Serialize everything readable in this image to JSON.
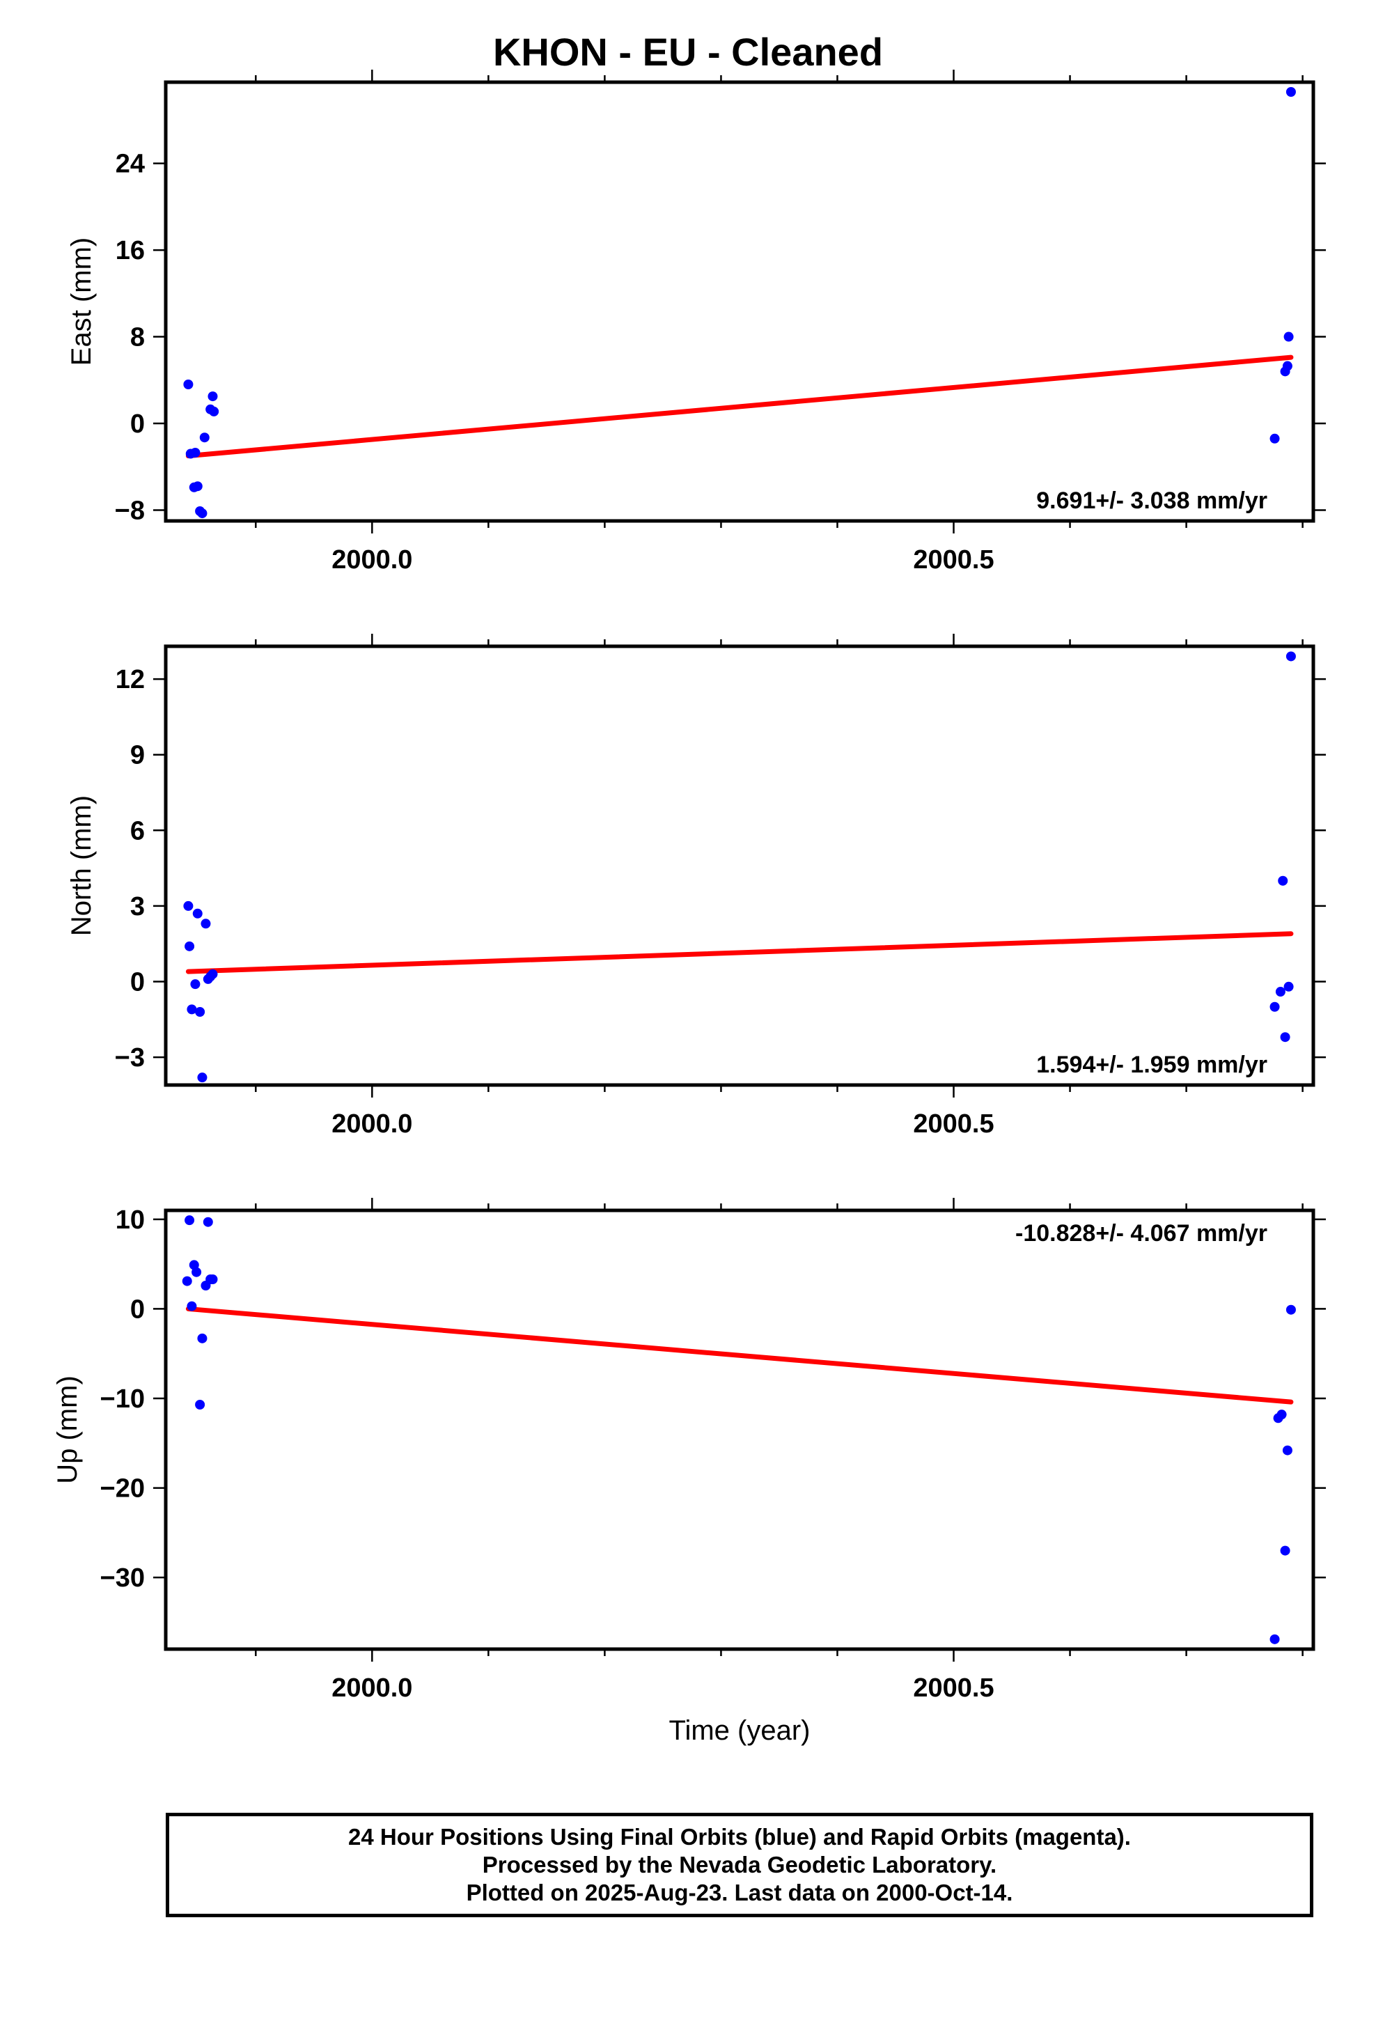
{
  "title": "KHON  - EU - Cleaned",
  "xlabel": "Time (year)",
  "footer": {
    "line1": "24 Hour Positions Using Final Orbits (blue) and Rapid Orbits (magenta).",
    "line2": "Processed by the Nevada Geodetic Laboratory.",
    "line3": "Plotted on 2025-Aug-23. Last data on 2000-Oct-14."
  },
  "colors": {
    "points": "#0000ff",
    "fit": "#ff0000",
    "frame": "#000000"
  },
  "chart_data": [
    {
      "type": "scatter",
      "ylabel": "East (mm)",
      "rate_label": "9.691+/- 3.038 mm/yr",
      "xlim": [
        1999.8226,
        2000.8092
      ],
      "ylim": [
        -9.0,
        31.5
      ],
      "xticks": [
        2000.0,
        2000.5
      ],
      "xtick_labels": [
        "2000.0",
        "2000.5"
      ],
      "yticks": [
        -8,
        0,
        8,
        16,
        24
      ],
      "ytick_labels": [
        "−8",
        "0",
        "8",
        "16",
        "24"
      ],
      "x": [
        1999.842,
        1999.844,
        1999.847,
        1999.848,
        1999.85,
        1999.852,
        1999.854,
        1999.856,
        1999.861,
        1999.863,
        1999.864,
        2000.776,
        2000.785,
        2000.787,
        2000.788,
        2000.79
      ],
      "y": [
        3.6,
        -2.8,
        -5.9,
        -2.7,
        -5.8,
        -8.1,
        -8.3,
        -1.3,
        1.3,
        2.5,
        1.1,
        -1.4,
        4.8,
        5.3,
        8.0,
        30.6
      ],
      "fit": {
        "x": [
          1999.842,
          2000.79
        ],
        "y": [
          -3.0,
          6.1
        ]
      }
    },
    {
      "type": "scatter",
      "ylabel": "North (mm)",
      "rate_label": "1.594+/- 1.959 mm/yr",
      "xlim": [
        1999.8226,
        2000.8092
      ],
      "ylim": [
        -4.1,
        13.3
      ],
      "xticks": [
        2000.0,
        2000.5
      ],
      "xtick_labels": [
        "2000.0",
        "2000.5"
      ],
      "yticks": [
        -3,
        0,
        3,
        6,
        9,
        12
      ],
      "ytick_labels": [
        "−3",
        "0",
        "3",
        "6",
        "9",
        "12"
      ],
      "x": [
        1999.842,
        1999.843,
        1999.845,
        1999.848,
        1999.85,
        1999.852,
        1999.854,
        1999.857,
        1999.859,
        1999.861,
        1999.863,
        2000.776,
        2000.781,
        2000.783,
        2000.785,
        2000.788,
        2000.79
      ],
      "y": [
        3.0,
        1.4,
        -1.1,
        -0.1,
        2.7,
        -1.2,
        -3.8,
        2.3,
        0.1,
        0.2,
        0.3,
        -1.0,
        -0.4,
        4.0,
        -2.2,
        -0.2,
        12.9
      ],
      "fit": {
        "x": [
          1999.842,
          2000.79
        ],
        "y": [
          0.4,
          1.9
        ]
      }
    },
    {
      "type": "scatter",
      "ylabel": "Up (mm)",
      "rate_label": "-10.828+/- 4.067 mm/yr",
      "xlim": [
        1999.8226,
        2000.8092
      ],
      "ylim": [
        -38.0,
        11.0
      ],
      "xticks": [
        2000.0,
        2000.5
      ],
      "xtick_labels": [
        "2000.0",
        "2000.5"
      ],
      "yticks": [
        -30,
        -20,
        -10,
        0,
        10
      ],
      "ytick_labels": [
        "−30",
        "−20",
        "−10",
        "0",
        "10"
      ],
      "x": [
        1999.841,
        1999.843,
        1999.845,
        1999.847,
        1999.849,
        1999.852,
        1999.854,
        1999.857,
        1999.859,
        1999.861,
        1999.863,
        2000.776,
        2000.779,
        2000.782,
        2000.785,
        2000.787,
        2000.79
      ],
      "y": [
        3.1,
        9.9,
        0.3,
        4.9,
        4.1,
        -10.7,
        -3.3,
        2.6,
        9.7,
        3.3,
        3.3,
        -36.9,
        -12.2,
        -11.8,
        -27.0,
        -15.8,
        -0.1
      ],
      "fit": {
        "x": [
          1999.842,
          2000.79
        ],
        "y": [
          0.0,
          -10.4
        ]
      }
    }
  ]
}
